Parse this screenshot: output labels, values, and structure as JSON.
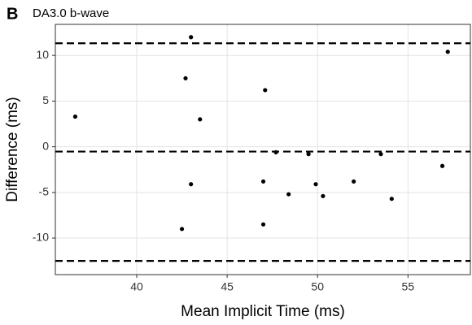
{
  "chart_data": {
    "type": "scatter",
    "panel": "B",
    "title": "DA3.0 b-wave",
    "x_label": "Mean Implicit Time (ms)",
    "y_label": "Difference (ms)",
    "x": [
      36.6,
      43.0,
      42.7,
      43.5,
      43.0,
      42.5,
      47.1,
      47.7,
      47.0,
      48.4,
      47.0,
      49.5,
      49.9,
      50.3,
      52.0,
      53.5,
      54.1,
      56.9,
      57.2
    ],
    "values": [
      3.3,
      12.0,
      7.5,
      3.0,
      -4.1,
      -9.0,
      6.2,
      -0.6,
      -3.8,
      -5.2,
      -8.5,
      -0.8,
      -4.1,
      -5.4,
      -3.8,
      -0.8,
      -5.7,
      -2.1,
      10.4
    ],
    "color": "#000000",
    "reference_lines": [
      11.33,
      -0.53,
      -12.5
    ],
    "xlim": [
      35.5,
      58.45
    ],
    "xticks": [
      40,
      45,
      50,
      55
    ],
    "ylim": [
      -14,
      13.4
    ],
    "yticks": [
      -10,
      -5,
      0,
      5,
      10
    ],
    "grid": true
  }
}
